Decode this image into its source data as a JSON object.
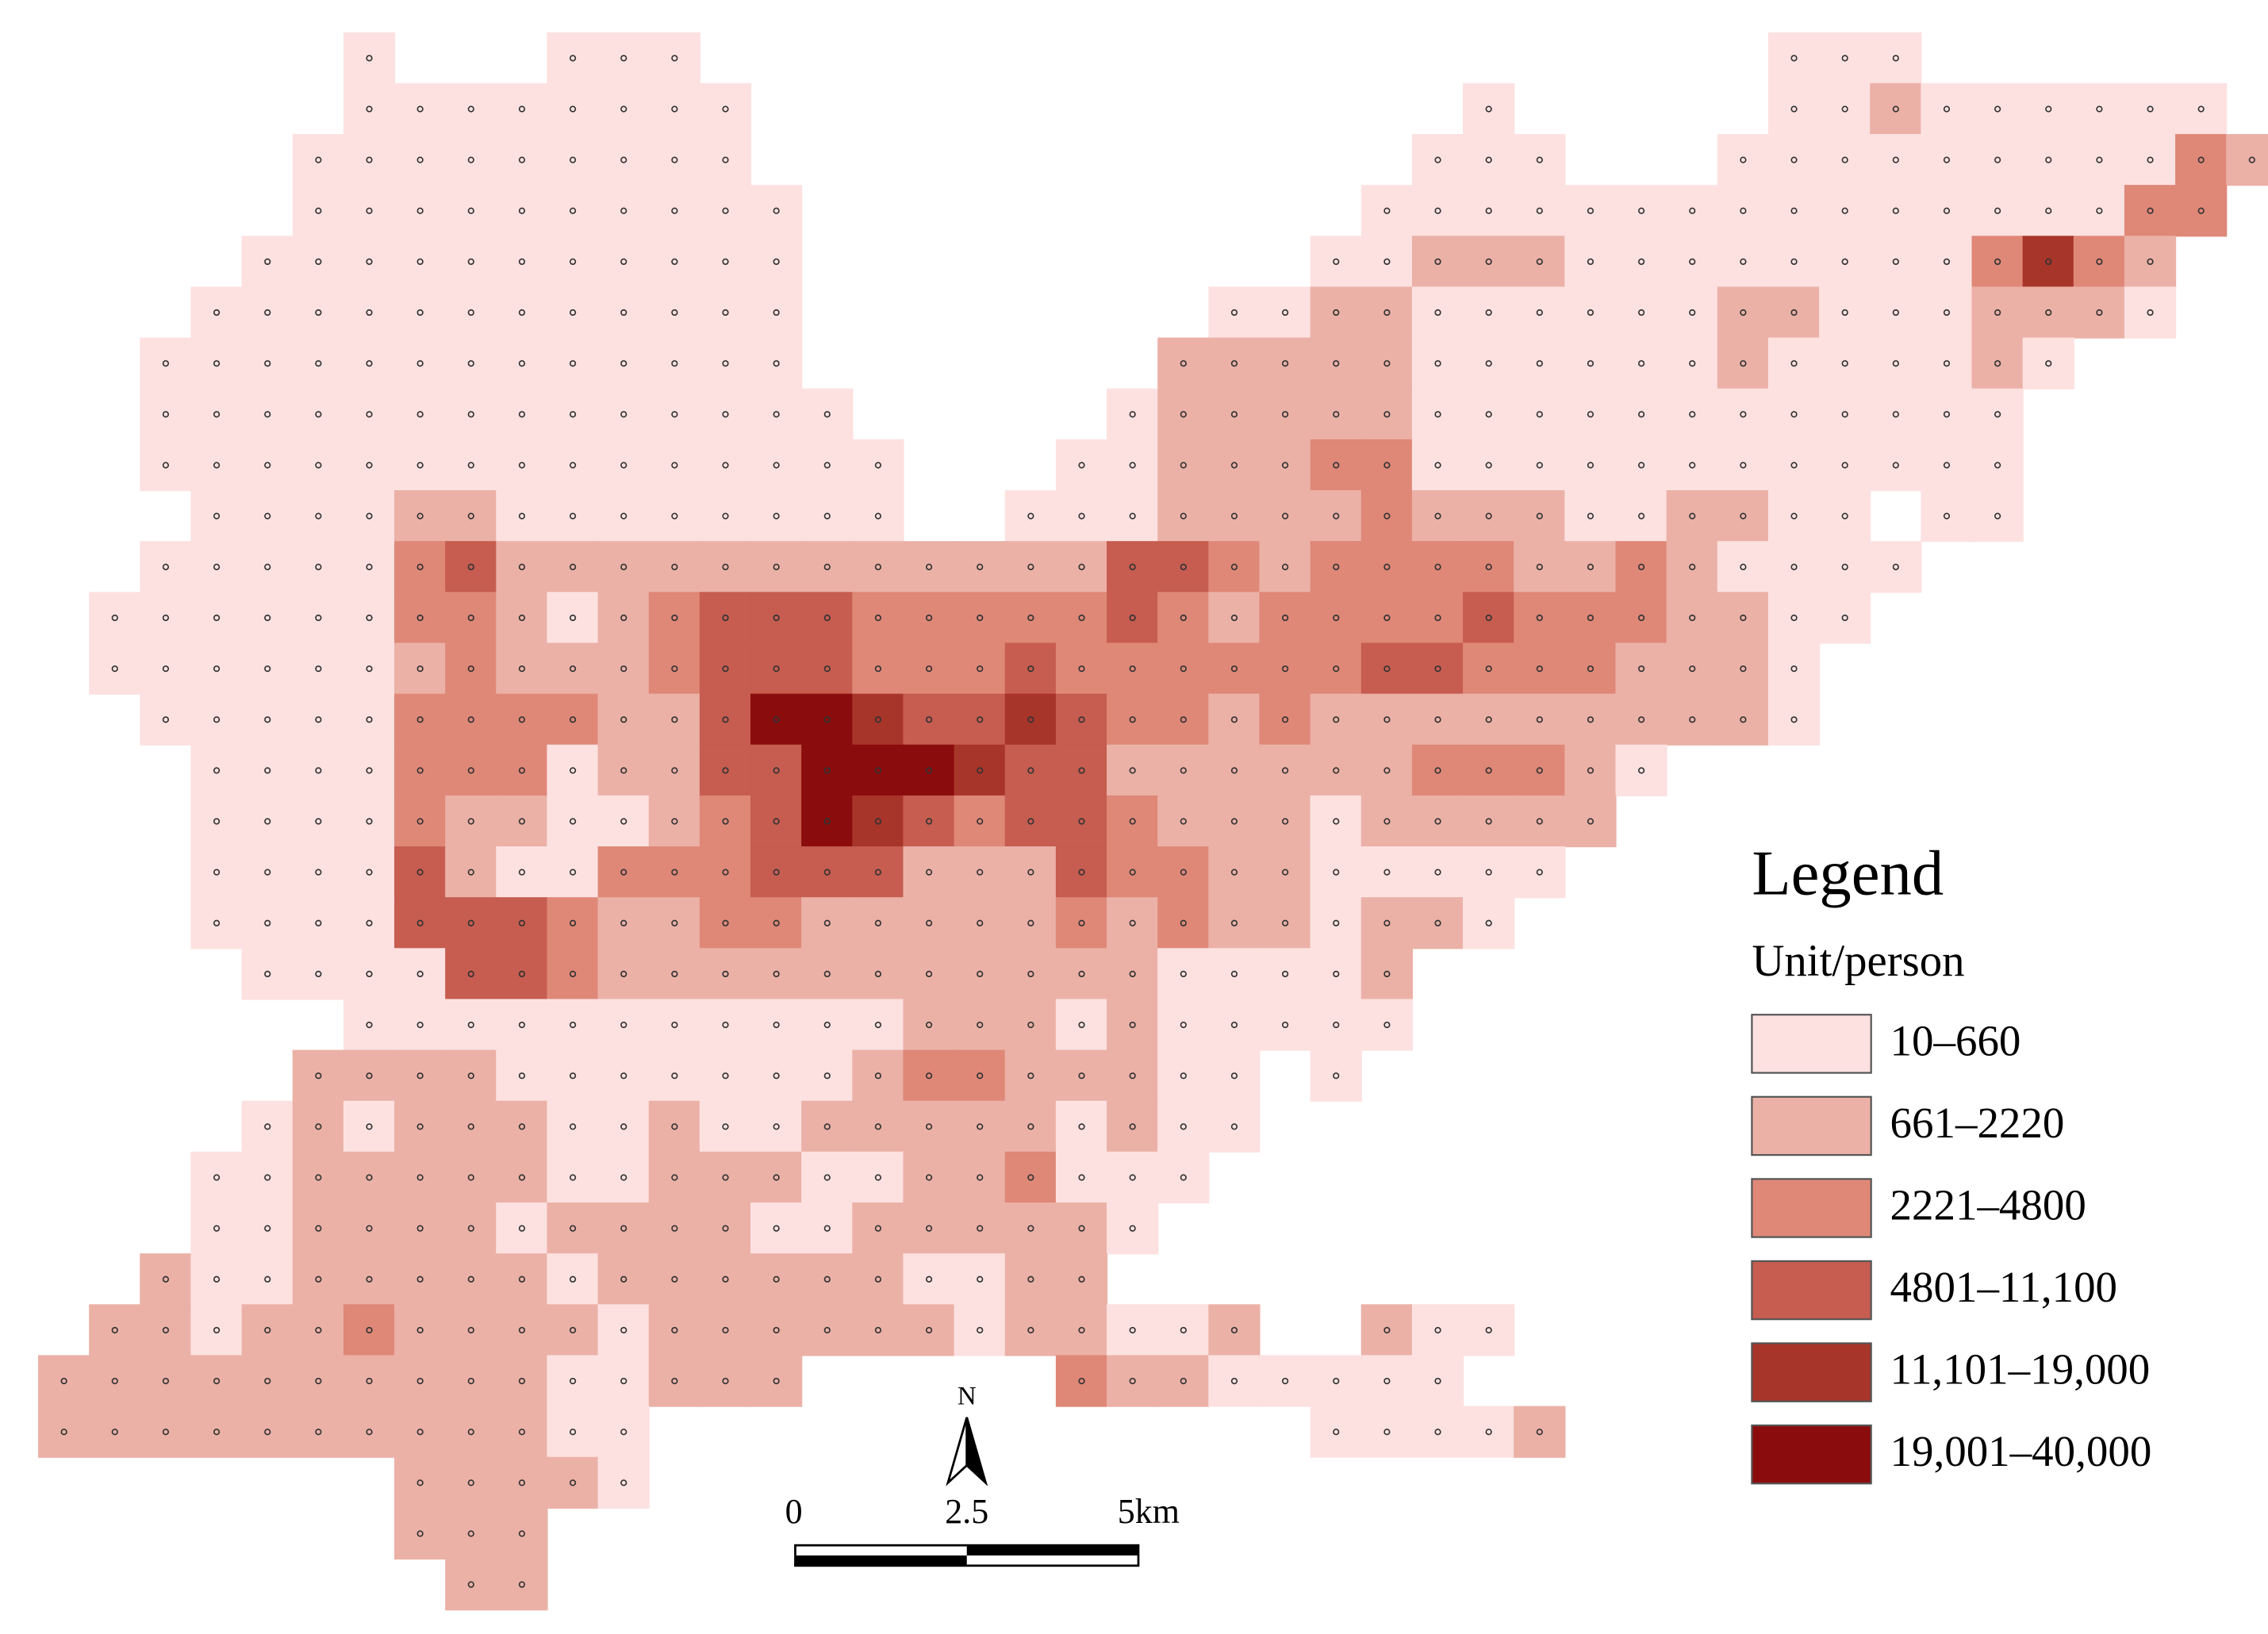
{
  "map": {
    "grid": [
      "0000001000111000000000000000000000111",
      "0000001111111100000000000000100000112111111",
      "00000111111111000000000000011100011111111132",
      "0000011111111110000000000011111111111111133",
      "000011111111111000000000011222111111113532",
      "000111111111111000000001122111111221112221",
      "0011111111111110000000222221111112111121",
      "001111111111111100000122222111111111111",
      "001111111111111110001122233111111111111",
      "000111122111111110011122223222112211 11",
      "0011111342222222222224432333322321111",
      "011111133212344433333432333343332211",
      "01111112322234443334333333443332221",
      "00111113333224665445433232222222221",
      "00011113331224466654422222233321",
      "0001111322112346543443222122222",
      "000111142113334442224332211111",
      "00011114443223322222323221221",
      "000011114432222222222211112",
      "000000111111111112221211111",
      "000002222111111123322211 1",
      "000012122211211222221211",
      "00011222221122211223111",
      "0001122221222211222221",
      "002112222212222221122",
      "02212232222122222212211200211",
      "2222222222112220000032211111",
      "222222222211000000000000011112",
      "000000022221",
      "0000000222",
      "0000000022"
    ],
    "legend": {
      "title": "Legend",
      "unit": "Unit/person",
      "classes": [
        {
          "label": "10–660",
          "color": "#fde1e1"
        },
        {
          "label": "661–2220",
          "color": "#ebb1a7"
        },
        {
          "label": "2221–4800",
          "color": "#df8878"
        },
        {
          "label": "4801–11,100",
          "color": "#c65d50"
        },
        {
          "label": "11,101–19,000",
          "color": "#a8352a"
        },
        {
          "label": "19,001–40,000",
          "color": "#8b0c0c"
        }
      ]
    },
    "scale_bar": {
      "labels": [
        "0",
        "2.5",
        "5km"
      ]
    },
    "north_label": "N"
  }
}
